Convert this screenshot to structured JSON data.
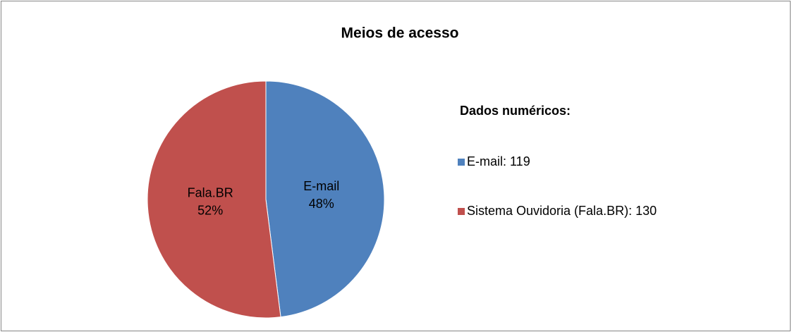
{
  "chart_data": {
    "type": "pie",
    "title": "Meios de acesso",
    "categories": [
      "E-mail",
      "Fala.BR"
    ],
    "values": [
      48,
      52
    ],
    "value_labels": [
      "48%",
      "52%"
    ],
    "colors": [
      "#4f81bd",
      "#c0504d"
    ],
    "legend": {
      "title": "Dados numéricos:",
      "entries": [
        "E-mail: 119",
        "Sistema Ouvidoria (Fala.BR): 130"
      ]
    }
  }
}
